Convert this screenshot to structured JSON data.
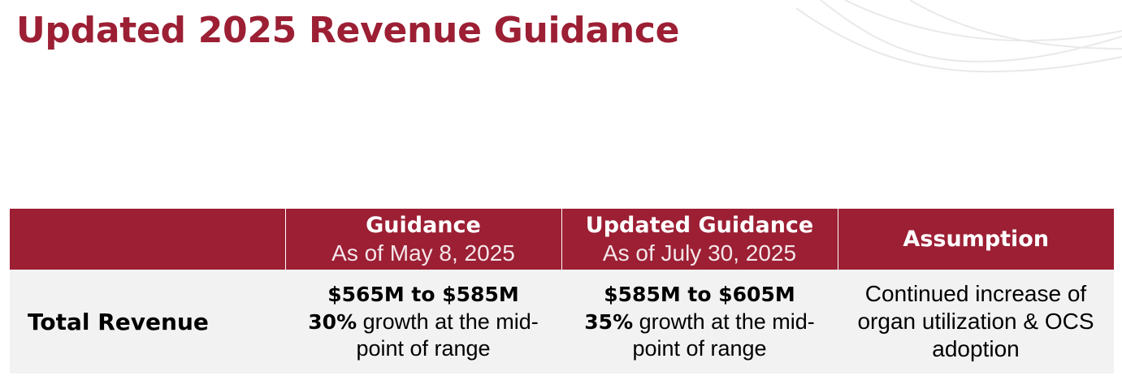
{
  "slide": {
    "title": "Updated 2025 Revenue Guidance"
  },
  "colors": {
    "brand": "#9c1f34",
    "row_background": "#f2f2f2",
    "header_text": "#ffffff"
  },
  "table": {
    "headers": [
      {
        "main": "",
        "sub": ""
      },
      {
        "main": "Guidance",
        "sub": "As of May 8, 2025"
      },
      {
        "main": "Updated Guidance",
        "sub": "As of July 30, 2025"
      },
      {
        "main": "Assumption",
        "sub": ""
      }
    ],
    "rows": [
      {
        "label": "Total Revenue",
        "guidance": {
          "range": "$565M to $585M",
          "growth_pct": "30%",
          "growth_text": " growth at the mid-point of range"
        },
        "updated": {
          "range": "$585M to $605M",
          "growth_pct": "35%",
          "growth_text": " growth at the mid-point of range"
        },
        "assumption": "Continued increase of organ utilization & OCS adoption"
      }
    ]
  }
}
